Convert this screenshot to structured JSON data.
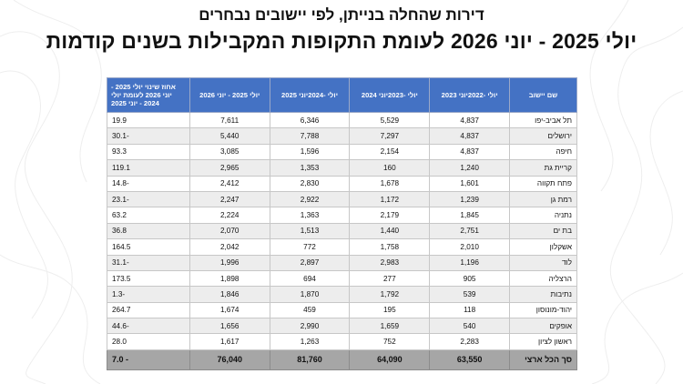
{
  "header": {
    "subtitle": "דירות שהחלה בנייתן, לפי יישובים נבחרים",
    "title": "יולי 2025 - יוני 2026 לעומת התקופות המקבילות בשנים קודמות"
  },
  "table": {
    "columns": [
      "שם יישוב",
      "יולי -2022יוני 2023",
      "יולי -2023יוני 2024",
      "יולי -2024יוני 2025",
      "יולי 2025 - יוני 2026",
      "אחוז שינוי יולי 2025 - יוני 2026 לעומת יולי 2024 - יוני 2025"
    ],
    "rows": [
      {
        "name": "תל אביב-יפו",
        "v1": "4,837",
        "v2": "5,529",
        "v3": "6,346",
        "v4": "7,611",
        "chg": "19.9"
      },
      {
        "name": "ירושלים",
        "v1": "4,837",
        "v2": "7,297",
        "v3": "7,788",
        "v4": "5,440",
        "chg": "-30.1"
      },
      {
        "name": "חיפה",
        "v1": "4,837",
        "v2": "2,154",
        "v3": "1,596",
        "v4": "3,085",
        "chg": "93.3"
      },
      {
        "name": "קריית גת",
        "v1": "1,240",
        "v2": "160",
        "v3": "1,353",
        "v4": "2,965",
        "chg": "119.1"
      },
      {
        "name": "פתח תקווה",
        "v1": "1,601",
        "v2": "1,678",
        "v3": "2,830",
        "v4": "2,412",
        "chg": "-14.8"
      },
      {
        "name": "רמת גן",
        "v1": "1,239",
        "v2": "1,172",
        "v3": "2,922",
        "v4": "2,247",
        "chg": "-23.1"
      },
      {
        "name": "נתניה",
        "v1": "1,845",
        "v2": "2,179",
        "v3": "1,363",
        "v4": "2,224",
        "chg": "63.2"
      },
      {
        "name": "בת ים",
        "v1": "2,751",
        "v2": "1,440",
        "v3": "1,513",
        "v4": "2,070",
        "chg": "36.8"
      },
      {
        "name": "אשקלון",
        "v1": "2,010",
        "v2": "1,758",
        "v3": "772",
        "v4": "2,042",
        "chg": "164.5"
      },
      {
        "name": "לוד",
        "v1": "1,196",
        "v2": "2,983",
        "v3": "2,897",
        "v4": "1,996",
        "chg": "-31.1"
      },
      {
        "name": "הרצליה",
        "v1": "905",
        "v2": "277",
        "v3": "694",
        "v4": "1,898",
        "chg": "173.5"
      },
      {
        "name": "נתיבות",
        "v1": "539",
        "v2": "1,792",
        "v3": "1,870",
        "v4": "1,846",
        "chg": "-1.3"
      },
      {
        "name": "יהוד-מונוסון",
        "v1": "118",
        "v2": "195",
        "v3": "459",
        "v4": "1,674",
        "chg": "264.7"
      },
      {
        "name": "אופקים",
        "v1": "540",
        "v2": "1,659",
        "v3": "2,990",
        "v4": "1,656",
        "chg": "-44.6"
      },
      {
        "name": "ראשון לציון",
        "v1": "2,283",
        "v2": "752",
        "v3": "1,263",
        "v4": "1,617",
        "chg": "28.0"
      }
    ],
    "total": {
      "name": "סך הכל ארצי",
      "v1": "63,550",
      "v2": "64,090",
      "v3": "81,760",
      "v4": "76,040",
      "chg": "- 7.0"
    }
  },
  "colors": {
    "header_bg": "#4472c4",
    "total_bg": "#a6a6a6",
    "stripe_bg": "#ededed"
  }
}
